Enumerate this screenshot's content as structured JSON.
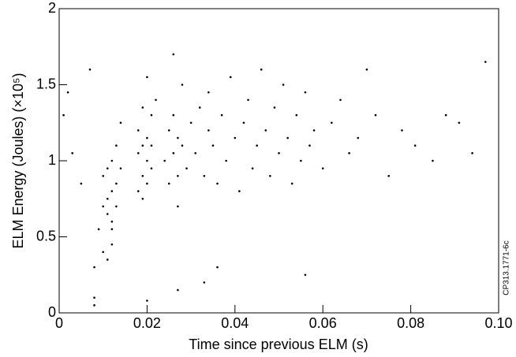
{
  "chart_data": {
    "type": "scatter",
    "x_label": "Time since previous ELM (s)",
    "y_label": "ELM Energy (Joules) (×10⁵)",
    "side_note": "CP313.1771-6c",
    "xlim": [
      0,
      0.1
    ],
    "ylim": [
      0,
      2
    ],
    "xticks": [
      0,
      0.02,
      0.04,
      0.06,
      0.08,
      {
        "value": 0.1,
        "label": "0.10"
      }
    ],
    "yticks": [
      0,
      0.5,
      1,
      1.5,
      2
    ],
    "grid": false,
    "color": "#000000",
    "x": [
      0.001,
      0.002,
      0.003,
      0.005,
      0.007,
      0.008,
      0.008,
      0.009,
      0.01,
      0.01,
      0.011,
      0.011,
      0.011,
      0.012,
      0.012,
      0.012,
      0.012,
      0.013,
      0.013,
      0.013,
      0.014,
      0.014,
      0.01,
      0.011,
      0.012,
      0.018,
      0.018,
      0.019,
      0.019,
      0.019,
      0.02,
      0.02,
      0.02,
      0.021,
      0.021,
      0.022,
      0.019,
      0.02,
      0.018,
      0.021,
      0.024,
      0.025,
      0.025,
      0.026,
      0.026,
      0.027,
      0.027,
      0.028,
      0.028,
      0.029,
      0.026,
      0.027,
      0.03,
      0.031,
      0.032,
      0.033,
      0.034,
      0.034,
      0.035,
      0.036,
      0.037,
      0.038,
      0.039,
      0.04,
      0.041,
      0.042,
      0.043,
      0.044,
      0.045,
      0.046,
      0.047,
      0.048,
      0.049,
      0.05,
      0.051,
      0.052,
      0.053,
      0.054,
      0.055,
      0.056,
      0.057,
      0.058,
      0.06,
      0.062,
      0.064,
      0.066,
      0.068,
      0.07,
      0.072,
      0.075,
      0.078,
      0.081,
      0.085,
      0.088,
      0.091,
      0.094,
      0.097,
      0.008,
      0.02,
      0.027,
      0.033,
      0.036,
      0.056
    ],
    "values": [
      1.3,
      1.45,
      1.05,
      0.85,
      1.6,
      0.3,
      0.1,
      0.55,
      0.9,
      0.7,
      0.75,
      0.65,
      0.95,
      0.8,
      0.6,
      1.0,
      0.55,
      0.85,
      1.1,
      0.7,
      0.95,
      1.25,
      0.4,
      0.35,
      0.45,
      1.05,
      1.2,
      1.1,
      0.9,
      1.35,
      1.0,
      1.15,
      0.85,
      1.3,
      0.95,
      1.4,
      0.75,
      1.55,
      0.8,
      1.1,
      1.0,
      1.2,
      0.85,
      1.05,
      1.3,
      1.15,
      0.9,
      1.5,
      1.1,
      0.95,
      1.7,
      0.7,
      1.25,
      1.05,
      1.35,
      0.9,
      1.2,
      1.45,
      1.1,
      0.85,
      1.3,
      1.0,
      1.55,
      1.15,
      0.8,
      1.25,
      1.4,
      0.95,
      1.1,
      1.6,
      1.2,
      0.9,
      1.35,
      1.05,
      1.5,
      1.15,
      0.85,
      1.3,
      1.0,
      1.45,
      1.1,
      1.2,
      0.95,
      1.25,
      1.4,
      1.05,
      1.15,
      1.6,
      1.3,
      0.9,
      1.2,
      1.1,
      1.0,
      1.3,
      1.25,
      1.05,
      1.65,
      0.05,
      0.08,
      0.15,
      0.2,
      0.3,
      0.25
    ]
  }
}
